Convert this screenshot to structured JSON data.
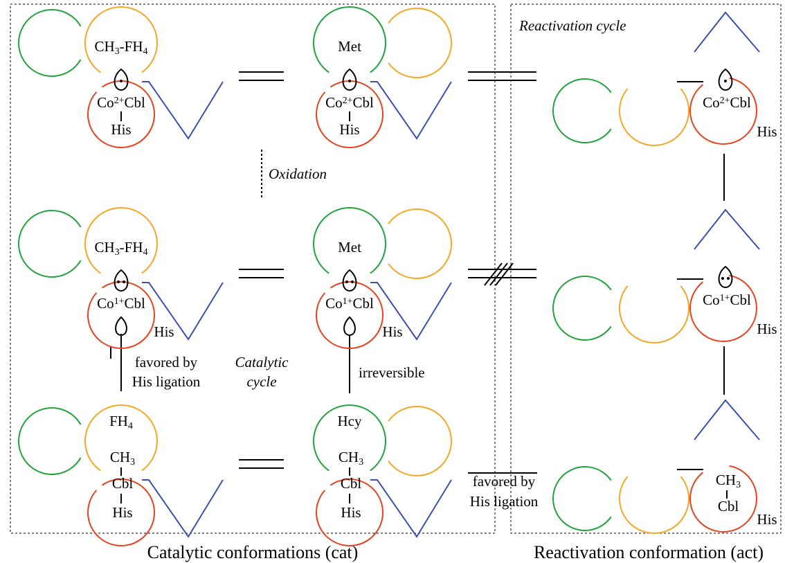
{
  "panels": {
    "catalytic": {
      "caption": "Catalytic conformations (cat)"
    },
    "reactivation": {
      "caption": "Reactivation conformation (act)",
      "title": "Reactivation cycle"
    }
  },
  "labels": {
    "oxidation": "Oxidation",
    "catalytic_cycle": [
      "Catalytic",
      "cycle"
    ],
    "favored_left": [
      "favored by",
      "His ligation"
    ],
    "irreversible": "irreversible",
    "favored_right": [
      "favored by",
      "His ligation"
    ]
  },
  "states": [
    {
      "substrate": [
        "CH",
        "3",
        "-FH",
        "4"
      ],
      "cofactor": [
        "Co",
        "2+",
        "Cbl"
      ],
      "ligand": "His"
    },
    {
      "substrate": [
        "Met"
      ],
      "cofactor": [
        "Co",
        "2+",
        "Cbl"
      ],
      "ligand": "His"
    },
    {
      "cofactor": [
        "Co",
        "2+",
        "Cbl"
      ],
      "ligand": "His"
    },
    {
      "substrate": [
        "CH",
        "3",
        "-FH",
        "4"
      ],
      "cofactor": [
        "Co",
        "1+",
        "Cbl"
      ],
      "ligand": "His"
    },
    {
      "substrate": [
        "Met"
      ],
      "cofactor": [
        "Co",
        "1+",
        "Cbl"
      ],
      "ligand": "His"
    },
    {
      "cofactor": [
        "Co",
        "1+",
        "Cbl"
      ],
      "ligand": "His"
    },
    {
      "substrate": [
        "FH",
        "4"
      ],
      "methyl": [
        "CH",
        "3"
      ],
      "cofactor": [
        "Cbl"
      ],
      "ligand": "His"
    },
    {
      "substrate": [
        "Hcy"
      ],
      "methyl": [
        "CH",
        "3"
      ],
      "cofactor": [
        "Cbl"
      ],
      "ligand": "His"
    },
    {
      "methyl": [
        "CH",
        "3"
      ],
      "cofactor": [
        "Cbl"
      ],
      "ligand": "His"
    }
  ]
}
